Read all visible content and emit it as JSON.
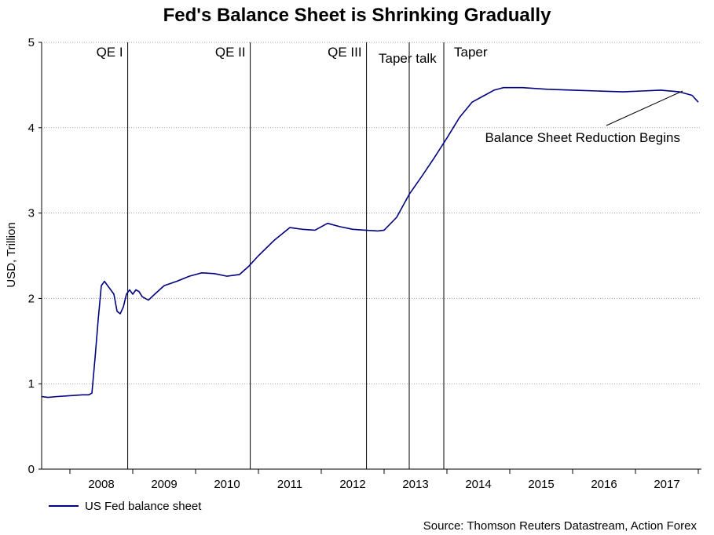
{
  "chart_data": {
    "type": "line",
    "title": "Fed's Balance Sheet is Shrinking Gradually",
    "ylabel": "USD, Trillion",
    "xlabel": "",
    "ylim": [
      0,
      5
    ],
    "yticks": [
      "0",
      "1",
      "2",
      "3",
      "4",
      "5"
    ],
    "xlim": [
      2007.55,
      2018.05
    ],
    "xtick_labels": [
      "2008",
      "2009",
      "2010",
      "2011",
      "2012",
      "2013",
      "2014",
      "2015",
      "2016",
      "2017"
    ],
    "grid": "horizontal dotted",
    "legend_position": "bottom-left",
    "colors": {
      "series": "#000080",
      "grid": "#a0a0a0",
      "events": "#000000"
    },
    "series": [
      {
        "name": "US Fed balance sheet",
        "x": [
          2007.55,
          2007.65,
          2007.8,
          2008.0,
          2008.2,
          2008.3,
          2008.35,
          2008.4,
          2008.45,
          2008.5,
          2008.55,
          2008.6,
          2008.65,
          2008.7,
          2008.75,
          2008.8,
          2008.85,
          2008.9,
          2008.95,
          2009.0,
          2009.05,
          2009.1,
          2009.15,
          2009.2,
          2009.25,
          2009.35,
          2009.5,
          2009.7,
          2009.9,
          2010.1,
          2010.3,
          2010.5,
          2010.7,
          2010.85,
          2011.0,
          2011.25,
          2011.5,
          2011.7,
          2011.9,
          2012.1,
          2012.3,
          2012.5,
          2012.7,
          2012.9,
          2013.0,
          2013.2,
          2013.4,
          2013.6,
          2013.8,
          2014.0,
          2014.2,
          2014.4,
          2014.6,
          2014.75,
          2014.9,
          2015.2,
          2015.6,
          2016.0,
          2016.4,
          2016.8,
          2017.1,
          2017.4,
          2017.7,
          2017.9,
          2018.0
        ],
        "values": [
          0.85,
          0.84,
          0.85,
          0.86,
          0.87,
          0.87,
          0.89,
          1.3,
          1.75,
          2.15,
          2.2,
          2.15,
          2.1,
          2.05,
          1.85,
          1.82,
          1.9,
          2.05,
          2.1,
          2.05,
          2.1,
          2.08,
          2.02,
          2.0,
          1.98,
          2.05,
          2.15,
          2.2,
          2.26,
          2.3,
          2.29,
          2.26,
          2.28,
          2.38,
          2.5,
          2.68,
          2.83,
          2.81,
          2.8,
          2.88,
          2.84,
          2.81,
          2.8,
          2.79,
          2.8,
          2.95,
          3.22,
          3.43,
          3.65,
          3.88,
          4.12,
          4.3,
          4.38,
          4.44,
          4.47,
          4.47,
          4.45,
          4.44,
          4.43,
          4.42,
          4.43,
          4.44,
          4.42,
          4.38,
          4.3
        ]
      }
    ],
    "events": [
      {
        "label": "QE I",
        "x": 2008.92
      },
      {
        "label": "QE II",
        "x": 2010.87
      },
      {
        "label": "QE III",
        "x": 2012.72
      },
      {
        "label": "Taper talk",
        "x": 2013.4
      },
      {
        "label": "Taper",
        "x": 2013.95
      }
    ],
    "annotations": [
      {
        "text": "Balance Sheet Reduction Begins",
        "x": 2017.75,
        "y": 4.43
      }
    ],
    "source": "Source: Thomson Reuters Datastream, Action Forex"
  }
}
